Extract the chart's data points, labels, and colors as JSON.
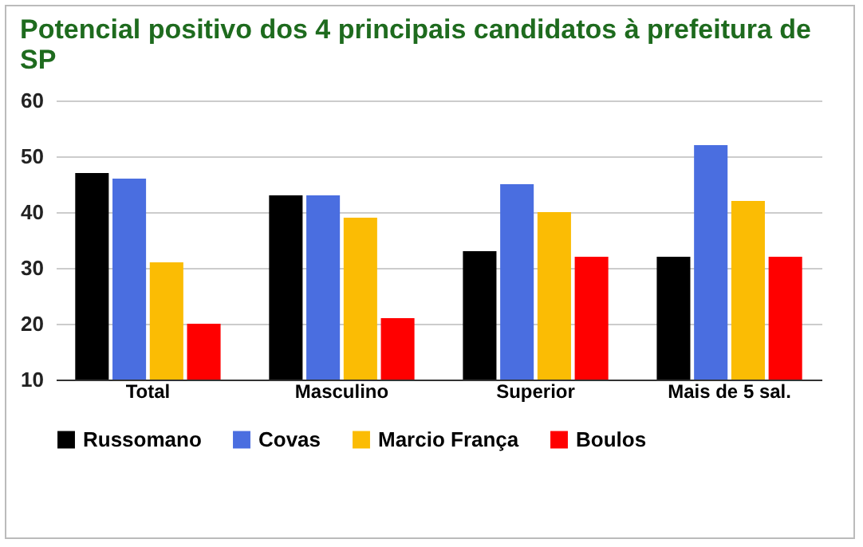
{
  "chart_data": {
    "type": "bar",
    "title": "Potencial positivo dos 4 principais candidatos à prefeitura de SP",
    "categories": [
      "Total",
      "Masculino",
      "Superior",
      "Mais de 5 sal."
    ],
    "series": [
      {
        "name": "Russomano",
        "color": "#000000",
        "values": [
          47,
          43,
          33,
          32
        ]
      },
      {
        "name": "Covas",
        "color": "#4a6ee0",
        "values": [
          46,
          43,
          45,
          52
        ]
      },
      {
        "name": "Marcio França",
        "color": "#fbbc04",
        "values": [
          31,
          39,
          40,
          42
        ]
      },
      {
        "name": "Boulos",
        "color": "#ff0000",
        "values": [
          20,
          21,
          32,
          32
        ]
      }
    ],
    "ylim": [
      10,
      60
    ],
    "yticks": [
      10,
      20,
      30,
      40,
      50,
      60
    ],
    "grid": "y",
    "legend": "bottom"
  }
}
